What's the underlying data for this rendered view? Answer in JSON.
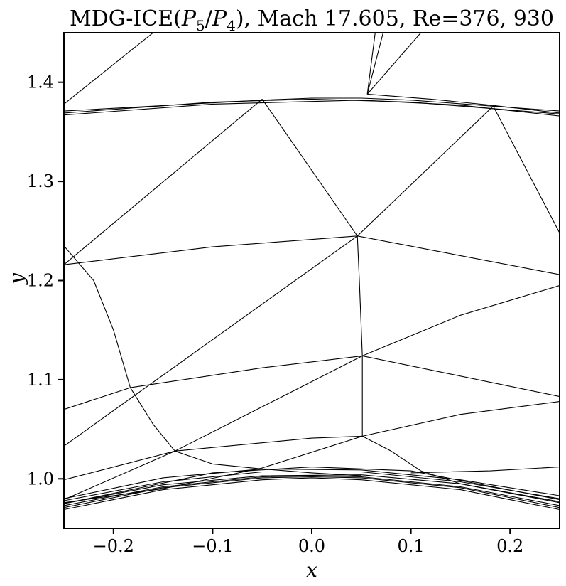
{
  "figure": {
    "title_main": "MDG-ICE(",
    "title_p5": "P",
    "title_s5": "5",
    "title_slash": "/",
    "title_p4": "P",
    "title_s4": "4",
    "title_rest": "), Mach 17.605, Re=376, 930",
    "xlabel": "x",
    "ylabel": "y"
  },
  "axes": {
    "xlim": [
      -0.25,
      0.25
    ],
    "ylim": [
      0.95,
      1.45
    ],
    "xticks": [
      -0.2,
      -0.1,
      0.0,
      0.1,
      0.2
    ],
    "xtick_labels": [
      "−0.2",
      "−0.1",
      "0.0",
      "0.1",
      "0.2"
    ],
    "yticks": [
      1.0,
      1.1,
      1.2,
      1.3,
      1.4
    ],
    "ytick_labels": [
      "1.0",
      "1.1",
      "1.2",
      "1.3",
      "1.4"
    ],
    "grid": false,
    "line_color": "#000000"
  },
  "mesh": {
    "curves": [
      [
        [
          -0.25,
          1.369
        ],
        [
          -0.1,
          1.38
        ],
        [
          0.0,
          1.383
        ],
        [
          0.1,
          1.38
        ],
        [
          0.25,
          1.368
        ]
      ],
      [
        [
          -0.25,
          1.371
        ],
        [
          -0.05,
          1.382
        ],
        [
          0.0,
          1.384
        ],
        [
          0.05,
          1.384
        ],
        [
          0.1,
          1.382
        ],
        [
          0.25,
          1.371
        ]
      ],
      [
        [
          -0.25,
          1.367
        ],
        [
          -0.1,
          1.378
        ],
        [
          0.05,
          1.382
        ],
        [
          0.15,
          1.377
        ],
        [
          0.25,
          1.366
        ]
      ],
      [
        [
          0.056,
          1.388
        ],
        [
          0.12,
          1.383
        ],
        [
          0.18,
          1.377
        ],
        [
          0.25,
          1.369
        ]
      ],
      [
        [
          -0.25,
          0.969
        ],
        [
          -0.15,
          0.989
        ],
        [
          -0.05,
          0.999
        ],
        [
          0.0,
          1.001
        ],
        [
          0.05,
          0.999
        ],
        [
          0.15,
          0.989
        ],
        [
          0.25,
          0.969
        ]
      ],
      [
        [
          -0.25,
          0.971
        ],
        [
          -0.15,
          0.991
        ],
        [
          -0.05,
          1.001
        ],
        [
          0.0,
          1.002
        ],
        [
          0.05,
          1.001
        ],
        [
          0.15,
          0.991
        ],
        [
          0.25,
          0.971
        ]
      ],
      [
        [
          -0.25,
          0.973
        ],
        [
          -0.15,
          0.992
        ],
        [
          -0.05,
          1.002
        ],
        [
          0.0,
          1.003
        ],
        [
          0.05,
          1.002
        ],
        [
          0.15,
          0.992
        ],
        [
          0.25,
          0.973
        ]
      ],
      [
        [
          -0.25,
          0.975
        ],
        [
          -0.15,
          0.994
        ],
        [
          -0.05,
          1.003
        ],
        [
          0.05,
          1.004
        ],
        [
          0.15,
          0.995
        ],
        [
          0.25,
          0.977
        ]
      ],
      [
        [
          -0.25,
          0.978
        ],
        [
          -0.15,
          0.997
        ],
        [
          -0.05,
          1.007
        ],
        [
          0.05,
          1.007
        ],
        [
          0.15,
          0.997
        ],
        [
          0.25,
          0.98
        ]
      ],
      [
        [
          -0.25,
          0.98
        ],
        [
          -0.15,
          1.001
        ],
        [
          -0.05,
          1.01
        ],
        [
          0.05,
          1.009
        ],
        [
          0.15,
          0.999
        ],
        [
          0.25,
          0.983
        ]
      ],
      [
        [
          -0.05,
          1.383
        ],
        [
          -0.25,
          1.216
        ]
      ],
      [
        [
          -0.05,
          1.383
        ],
        [
          0.046,
          1.245
        ]
      ],
      [
        [
          0.183,
          1.376
        ],
        [
          0.046,
          1.245
        ]
      ],
      [
        [
          0.183,
          1.376
        ],
        [
          0.25,
          1.248
        ]
      ],
      [
        [
          0.056,
          1.388
        ],
        [
          0.064,
          1.45
        ]
      ],
      [
        [
          0.056,
          1.388
        ],
        [
          0.072,
          1.45
        ]
      ],
      [
        [
          0.056,
          1.388
        ],
        [
          0.11,
          1.45
        ]
      ],
      [
        [
          -0.25,
          1.378
        ],
        [
          -0.16,
          1.45
        ]
      ],
      [
        [
          -0.25,
          1.216
        ],
        [
          -0.1,
          1.234
        ],
        [
          0.046,
          1.245
        ]
      ],
      [
        [
          0.046,
          1.245
        ],
        [
          0.25,
          1.206
        ]
      ],
      [
        [
          -0.25,
          1.235
        ],
        [
          -0.22,
          1.2
        ],
        [
          -0.2,
          1.15
        ],
        [
          -0.183,
          1.092
        ],
        [
          -0.16,
          1.055
        ],
        [
          -0.138,
          1.028
        ],
        [
          -0.1,
          1.015
        ],
        [
          -0.05,
          1.01
        ],
        [
          0.0,
          1.006
        ],
        [
          0.05,
          1.003
        ]
      ],
      [
        [
          0.046,
          1.245
        ],
        [
          -0.25,
          1.033
        ]
      ],
      [
        [
          0.046,
          1.245
        ],
        [
          0.048,
          1.2
        ],
        [
          0.05,
          1.15
        ],
        [
          0.051,
          1.124
        ],
        [
          0.051,
          1.08
        ],
        [
          0.051,
          1.043
        ]
      ],
      [
        [
          -0.25,
          1.07
        ],
        [
          -0.183,
          1.092
        ],
        [
          -0.05,
          1.112
        ],
        [
          0.051,
          1.124
        ]
      ],
      [
        [
          0.051,
          1.124
        ],
        [
          0.15,
          1.165
        ],
        [
          0.25,
          1.195
        ]
      ],
      [
        [
          0.051,
          1.124
        ],
        [
          0.25,
          1.083
        ]
      ],
      [
        [
          0.051,
          1.124
        ],
        [
          -0.138,
          1.028
        ],
        [
          -0.25,
          0.979
        ]
      ],
      [
        [
          -0.25,
          0.999
        ],
        [
          -0.138,
          1.028
        ],
        [
          0.0,
          1.041
        ],
        [
          0.051,
          1.043
        ]
      ],
      [
        [
          0.051,
          1.043
        ],
        [
          0.15,
          1.065
        ],
        [
          0.25,
          1.078
        ]
      ],
      [
        [
          0.051,
          1.043
        ],
        [
          -0.05,
          1.011
        ],
        [
          -0.15,
          0.99
        ],
        [
          -0.25,
          0.976
        ]
      ],
      [
        [
          0.051,
          1.043
        ],
        [
          0.08,
          1.028
        ],
        [
          0.11,
          1.008
        ],
        [
          0.15,
          0.995
        ],
        [
          0.25,
          0.976
        ]
      ],
      [
        [
          -0.25,
          0.975
        ],
        [
          -0.1,
          1.006
        ],
        [
          0.0,
          1.012
        ],
        [
          0.1,
          1.008
        ],
        [
          0.25,
          0.979
        ]
      ],
      [
        [
          0.1,
          1.006
        ],
        [
          0.18,
          1.008
        ],
        [
          0.25,
          1.012
        ]
      ]
    ]
  }
}
